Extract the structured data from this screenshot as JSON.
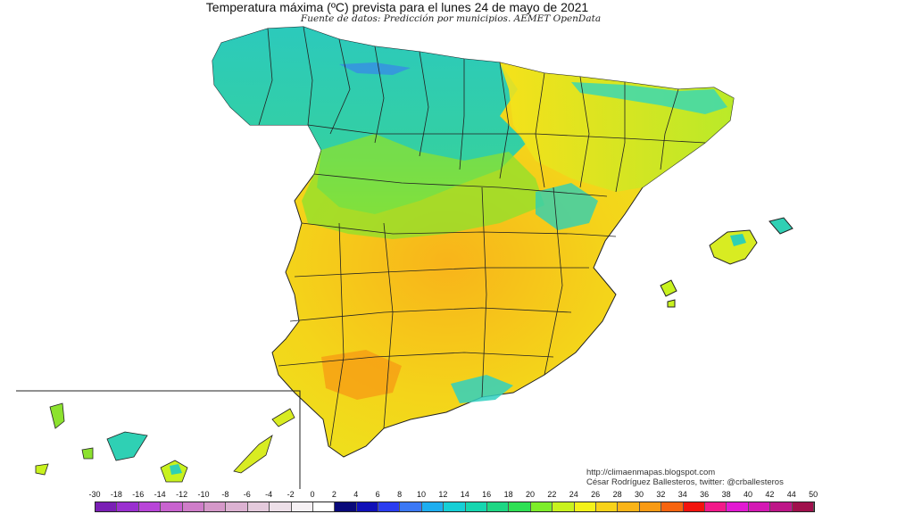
{
  "header": {
    "title": "Temperatura máxima (ºC) prevista para el lunes 24 de mayo de 2021",
    "subtitle": "Fuente de datos: Predicción por municipios. AEMET OpenData"
  },
  "credit": {
    "url": "http://climaenmapas.blogspot.com",
    "author": "César Rodríguez Ballesteros, twitter: @crballesteros"
  },
  "legend": {
    "ticks": [
      "-30",
      "-18",
      "-16",
      "-14",
      "-12",
      "-10",
      "-8",
      "-6",
      "-4",
      "-2",
      "0",
      "2",
      "4",
      "6",
      "8",
      "10",
      "12",
      "14",
      "16",
      "18",
      "20",
      "22",
      "24",
      "26",
      "28",
      "30",
      "32",
      "34",
      "36",
      "38",
      "40",
      "42",
      "44",
      "50"
    ],
    "colors": [
      "#7a1fb5",
      "#9a2fd0",
      "#b845d8",
      "#c863cf",
      "#cf7dc9",
      "#d598c9",
      "#dcb2d2",
      "#e4cadc",
      "#eddfe8",
      "#f6f1f4",
      "#ffffff",
      "#0a0a7a",
      "#1010b8",
      "#2a3cf0",
      "#3b78f5",
      "#1eaef0",
      "#16cfd6",
      "#16d6b0",
      "#1ed784",
      "#2ee054",
      "#7ded2a",
      "#c8f21e",
      "#f4f21a",
      "#f8d21a",
      "#fab418",
      "#f89a14",
      "#f7640f",
      "#f2140e",
      "#f21a8a",
      "#e21ad2",
      "#d41ab4",
      "#be1688",
      "#a0104c",
      "#7a0a1e"
    ]
  }
}
